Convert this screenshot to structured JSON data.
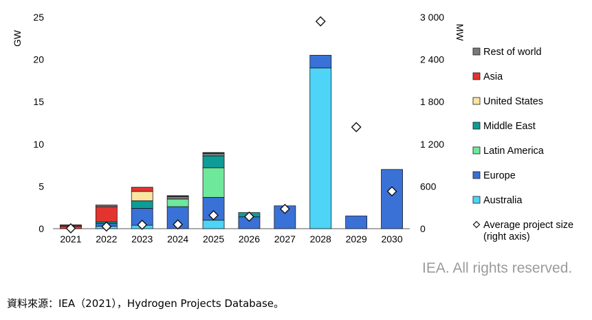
{
  "chart_data": {
    "type": "bar",
    "stacked": true,
    "categories": [
      "2021",
      "2022",
      "2023",
      "2024",
      "2025",
      "2026",
      "2027",
      "2028",
      "2029",
      "2030"
    ],
    "ylabel_left": "GW",
    "ylabel_right": "MW",
    "ylim_left": [
      0,
      25
    ],
    "ylim_right": [
      0,
      3000
    ],
    "yticks_left": [
      "0",
      "5",
      "10",
      "15",
      "20",
      "25"
    ],
    "yticks_right": [
      "0",
      "600",
      "1 200",
      "1 800",
      "2 400",
      "3 000"
    ],
    "grid": false,
    "legend_position": "right",
    "series": [
      {
        "name": "Australia",
        "color": "#4dd4f7",
        "values": [
          0,
          0.3,
          0.4,
          0,
          1.0,
          0,
          0,
          19.0,
          0,
          0
        ]
      },
      {
        "name": "Europe",
        "color": "#3a71d6",
        "values": [
          0,
          0.3,
          2.0,
          2.6,
          2.7,
          1.4,
          2.7,
          1.5,
          1.5,
          7.0
        ]
      },
      {
        "name": "Latin America",
        "color": "#6ee89b",
        "values": [
          0,
          0,
          0,
          0.9,
          3.5,
          0,
          0,
          0,
          0,
          0
        ]
      },
      {
        "name": "Middle East",
        "color": "#0d9c96",
        "values": [
          0,
          0.2,
          0.9,
          0,
          1.4,
          0.5,
          0,
          0,
          0,
          0
        ]
      },
      {
        "name": "United States",
        "color": "#fbe5a1",
        "values": [
          0,
          0,
          1.1,
          0,
          0,
          0,
          0,
          0,
          0,
          0
        ]
      },
      {
        "name": "Asia",
        "color": "#e3342f",
        "values": [
          0.3,
          1.8,
          0.5,
          0,
          0,
          0,
          0,
          0,
          0,
          0
        ]
      },
      {
        "name": "Rest of world",
        "color": "#7a7a7a",
        "values": [
          0.1,
          0.2,
          0,
          0.3,
          0.3,
          0,
          0,
          0,
          0,
          0
        ]
      }
    ],
    "extra_segments": [
      {
        "category": "2021",
        "color": "#3b0a0a",
        "value": 0.05
      },
      {
        "category": "2024",
        "color": "#111111",
        "value": 0.1
      },
      {
        "category": "2025",
        "color": "#111111",
        "value": 0.1
      }
    ],
    "average_project_size": {
      "name": "Average project size (right axis)",
      "axis": "right",
      "values": [
        5,
        30,
        55,
        60,
        190,
        170,
        280,
        2940,
        1440,
        530
      ]
    },
    "legend": [
      {
        "label": "Rest of world",
        "color": "#7a7a7a",
        "kind": "box"
      },
      {
        "label": "Asia",
        "color": "#e3342f",
        "kind": "box"
      },
      {
        "label": "United States",
        "color": "#fbe5a1",
        "kind": "box"
      },
      {
        "label": "Middle East",
        "color": "#0d9c96",
        "kind": "box"
      },
      {
        "label": "Latin America",
        "color": "#6ee89b",
        "kind": "box"
      },
      {
        "label": "Europe",
        "color": "#3a71d6",
        "kind": "box"
      },
      {
        "label": "Australia",
        "color": "#4dd4f7",
        "kind": "box"
      },
      {
        "label": "Average project size",
        "label2": "(right axis)",
        "kind": "diamond"
      }
    ]
  },
  "credit": "IEA. All rights reserved.",
  "source": "資料來源：IEA（2021），Hydrogen Projects Database。"
}
